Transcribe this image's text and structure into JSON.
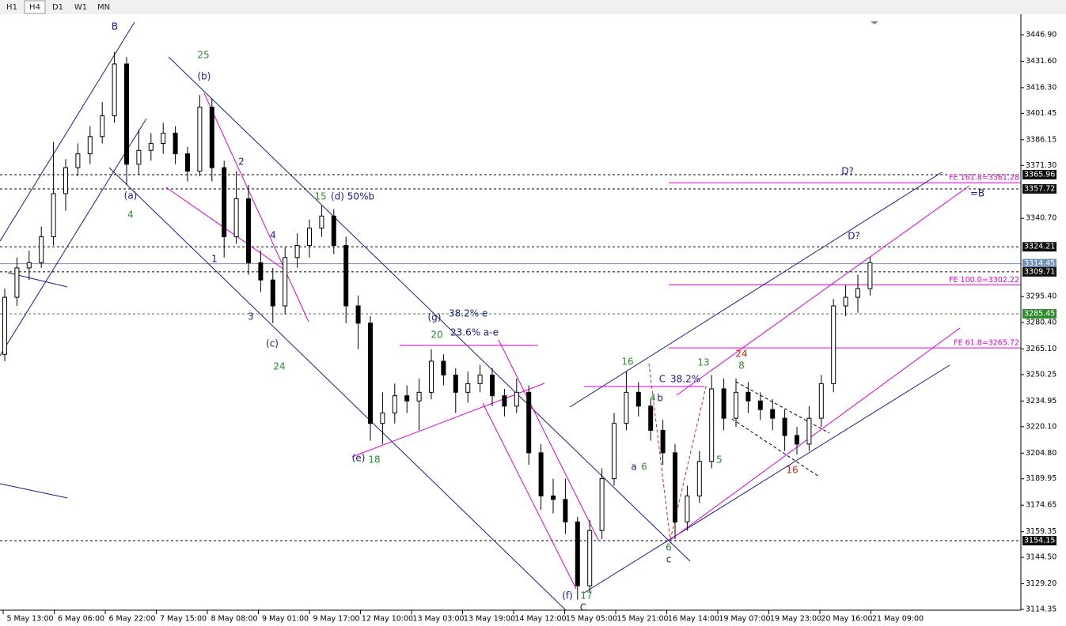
{
  "chart_data": {
    "type": "candlestick",
    "toolbar": [
      "H1",
      "H4",
      "D1",
      "W1",
      "MN"
    ],
    "active_timeframe": 1,
    "candle_color": "#000000",
    "ylim": [
      3113.9,
      3458.8
    ],
    "yticks": [
      {
        "value": 3446.9,
        "label": "3446.90"
      },
      {
        "value": 3431.6,
        "label": "3431.60"
      },
      {
        "value": 3416.3,
        "label": "3416.30"
      },
      3401.45,
      3386.15,
      {
        "value": 3371.3,
        "label": "3371.30"
      },
      {
        "value": 3340.7,
        "label": "3340.70"
      },
      {
        "value": 3295.4,
        "label": "3295.40"
      },
      {
        "value": 3280.4,
        "label": "3280.40"
      },
      {
        "value": 3265.1,
        "label": "3265.10"
      },
      3250.25,
      3234.95,
      {
        "value": 3220.1,
        "label": "3220.10"
      },
      {
        "value": 3204.8,
        "label": "3204.80"
      },
      3189.95,
      3174.65,
      3159.35,
      {
        "value": 3144.5,
        "label": "3144.50"
      },
      {
        "value": 3129.2,
        "label": "3129.20"
      },
      3114.35
    ],
    "time_labels": [
      "5 May 13:00",
      "6 May 06:00",
      "6 May 22:00",
      "7 May 15:00",
      "8 May 08:00",
      "9 May 01:00",
      "9 May 17:00",
      "12 May 10:00",
      "13 May 03:00",
      "13 May 19:00",
      "14 May 12:00",
      "15 May 05:00",
      "15 May 21:00",
      "16 May 14:00",
      "19 May 07:00",
      "19 May 23:00",
      "20 May 16:00",
      "21 May 09:00"
    ],
    "ohlc": [
      [
        3262,
        3300,
        3258,
        3295
      ],
      [
        3295,
        3318,
        3290,
        3312
      ],
      [
        3312,
        3322,
        3305,
        3315
      ],
      [
        3315,
        3336,
        3312,
        3330
      ],
      [
        3330,
        3385,
        3325,
        3355
      ],
      [
        3355,
        3375,
        3345,
        3370
      ],
      [
        3370,
        3384,
        3365,
        3378
      ],
      [
        3378,
        3394,
        3372,
        3388
      ],
      [
        3388,
        3408,
        3384,
        3400
      ],
      [
        3400,
        3437,
        3396,
        3430
      ],
      [
        3430,
        3434,
        3360,
        3372
      ],
      [
        3372,
        3392,
        3366,
        3380
      ],
      [
        3380,
        3390,
        3374,
        3384
      ],
      [
        3384,
        3396,
        3378,
        3390
      ],
      [
        3390,
        3394,
        3372,
        3378
      ],
      [
        3378,
        3382,
        3362,
        3368
      ],
      [
        3368,
        3412,
        3365,
        3405
      ],
      [
        3405,
        3410,
        3362,
        3370
      ],
      [
        3370,
        3374,
        3318,
        3330
      ],
      [
        3330,
        3368,
        3326,
        3352
      ],
      [
        3352,
        3360,
        3308,
        3315
      ],
      [
        3315,
        3322,
        3298,
        3305
      ],
      [
        3305,
        3312,
        3280,
        3290
      ],
      [
        3290,
        3324,
        3285,
        3318
      ],
      [
        3318,
        3332,
        3312,
        3325
      ],
      [
        3325,
        3340,
        3318,
        3335
      ],
      [
        3335,
        3348,
        3330,
        3342
      ],
      [
        3342,
        3346,
        3320,
        3325
      ],
      [
        3325,
        3330,
        3280,
        3290
      ],
      [
        3290,
        3296,
        3265,
        3280
      ],
      [
        3280,
        3284,
        3212,
        3222
      ],
      [
        3222,
        3240,
        3210,
        3228
      ],
      [
        3228,
        3245,
        3222,
        3238
      ],
      [
        3238,
        3244,
        3228,
        3235
      ],
      [
        3235,
        3248,
        3218,
        3240
      ],
      [
        3240,
        3265,
        3236,
        3258
      ],
      [
        3258,
        3262,
        3244,
        3250
      ],
      [
        3250,
        3254,
        3228,
        3240
      ],
      [
        3240,
        3252,
        3234,
        3245
      ],
      [
        3245,
        3256,
        3240,
        3250
      ],
      [
        3250,
        3254,
        3232,
        3238
      ],
      [
        3238,
        3242,
        3226,
        3232
      ],
      [
        3232,
        3248,
        3228,
        3240
      ],
      [
        3240,
        3244,
        3198,
        3205
      ],
      [
        3205,
        3210,
        3172,
        3180
      ],
      [
        3180,
        3190,
        3170,
        3178
      ],
      [
        3178,
        3190,
        3158,
        3165
      ],
      [
        3165,
        3168,
        3120,
        3128
      ],
      [
        3128,
        3166,
        3124,
        3160
      ],
      [
        3160,
        3196,
        3155,
        3190
      ],
      [
        3190,
        3228,
        3186,
        3222
      ],
      [
        3222,
        3252,
        3218,
        3240
      ],
      [
        3240,
        3246,
        3226,
        3232
      ],
      [
        3232,
        3236,
        3212,
        3218
      ],
      [
        3218,
        3224,
        3198,
        3205
      ],
      [
        3205,
        3210,
        3155,
        3165
      ],
      [
        3165,
        3186,
        3160,
        3180
      ],
      [
        3180,
        3206,
        3176,
        3200
      ],
      [
        3200,
        3250,
        3196,
        3242
      ],
      [
        3242,
        3248,
        3218,
        3225
      ],
      [
        3225,
        3248,
        3220,
        3240
      ],
      [
        3240,
        3246,
        3228,
        3235
      ],
      [
        3235,
        3240,
        3224,
        3230
      ],
      [
        3230,
        3236,
        3218,
        3225
      ],
      [
        3225,
        3230,
        3206,
        3215
      ],
      [
        3215,
        3220,
        3204,
        3210
      ],
      [
        3210,
        3232,
        3206,
        3225
      ],
      [
        3225,
        3250,
        3220,
        3245
      ],
      [
        3245,
        3294,
        3240,
        3290
      ],
      [
        3290,
        3302,
        3284,
        3295
      ],
      [
        3295,
        3308,
        3286,
        3300
      ],
      [
        3300,
        3318,
        3296,
        3315
      ]
    ],
    "levels": [
      {
        "value": 3365.96,
        "color": "#000000",
        "style": "dashed"
      },
      {
        "value": 3357.72,
        "color": "#000000",
        "style": "dashed"
      },
      {
        "value": 3324.21,
        "color": "#000000",
        "style": "dashed"
      },
      {
        "value": 3314.45,
        "color": "#7090b8",
        "style": "solid"
      },
      {
        "value": 3309.71,
        "color": "#000000",
        "style": "dashed"
      },
      {
        "value": 3285.45,
        "color": "#2e8b2e",
        "style": "dashed"
      },
      {
        "value": 3154.15,
        "color": "#000000",
        "style": "dashed"
      }
    ],
    "fib_levels": [
      {
        "value": 3361.28,
        "label": "FE 161.8=3361.28"
      },
      {
        "value": 3302.22,
        "label": "FE 100.0=3302.22"
      },
      {
        "value": 3265.72,
        "label": "FE 61.8=3265.72"
      }
    ],
    "fib_color": "#e000d0",
    "annotations": [
      {
        "text": "B",
        "color": "#1a1a8c"
      },
      {
        "text": "25",
        "color": "#2e8b2e"
      },
      {
        "text": "(b)",
        "color": "#1a1a8c"
      },
      {
        "text": "2",
        "color": "#1a1a8c"
      },
      {
        "text": "(a)",
        "color": "#1a1a8c"
      },
      {
        "text": "4",
        "color": "#2e8b2e"
      },
      {
        "text": "15",
        "color": "#2e8b2e"
      },
      {
        "text": "(d) 50%b",
        "color": "#1a1a8c"
      },
      {
        "text": "4",
        "color": "#1a1a8c"
      },
      {
        "text": "1",
        "color": "#1a1a8c"
      },
      {
        "text": "3",
        "color": "#1a1a8c"
      },
      {
        "text": "(c)",
        "color": "#1a1a8c"
      },
      {
        "text": "24",
        "color": "#2e8b2e"
      },
      {
        "text": "(g)",
        "color": "#1a1a8c"
      },
      {
        "text": "38.2% e",
        "color": "#1a1a8c"
      },
      {
        "text": "20",
        "color": "#2e8b2e"
      },
      {
        "text": "23.6% a-e",
        "color": "#1a1a8c"
      },
      {
        "text": "(e)",
        "color": "#1a1a8c"
      },
      {
        "text": "18",
        "color": "#2e8b2e"
      },
      {
        "text": "16",
        "color": "#2e8b2e"
      },
      {
        "text": "C",
        "color": "#1a1a8c"
      },
      {
        "text": "38.2%",
        "color": "#1a1a8c"
      },
      {
        "text": "4",
        "color": "#2e8b2e"
      },
      {
        "text": "b",
        "color": "#1a1a8c"
      },
      {
        "text": "a",
        "color": "#1a1a8c"
      },
      {
        "text": "6",
        "color": "#2e8b2e"
      },
      {
        "text": "13",
        "color": "#2e8b2e"
      },
      {
        "text": "24",
        "color": "#d02020"
      },
      {
        "text": "8",
        "color": "#2e8b2e"
      },
      {
        "text": "5",
        "color": "#2e8b2e"
      },
      {
        "text": "16",
        "color": "#d02020"
      },
      {
        "text": "6",
        "color": "#2e8b2e"
      },
      {
        "text": "c",
        "color": "#1a1a8c"
      },
      {
        "text": "(f)",
        "color": "#1a1a8c"
      },
      {
        "text": "17",
        "color": "#2e8b2e"
      },
      {
        "text": "C",
        "color": "#1a1a8c"
      },
      {
        "text": "D?",
        "color": "#1a1a8c"
      },
      {
        "text": "D?",
        "color": "#1a1a8c"
      },
      {
        "text": "=B",
        "color": "#1a1a8c"
      }
    ]
  }
}
